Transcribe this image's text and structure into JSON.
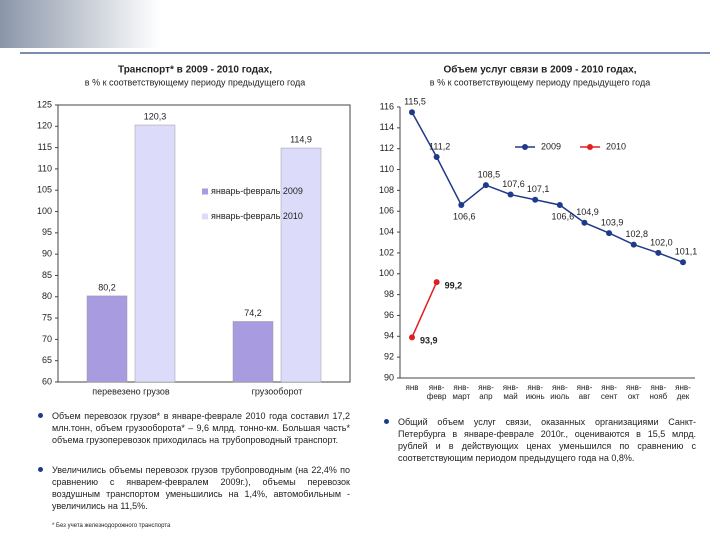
{
  "chart_data": [
    {
      "type": "bar",
      "title": "Транспорт* в 2009 - 2010 годах,",
      "subtitle": "в % к соответствующему периоду предыдущего года",
      "categories": [
        "перевезено грузов",
        "грузооборот"
      ],
      "series": [
        {
          "name": "январь-февраль 2009",
          "color": "#a99be0",
          "values": [
            80.2,
            74.2
          ],
          "value_labels": [
            "80,2",
            "74,2"
          ]
        },
        {
          "name": "январь-февраль 2010",
          "color": "#dcdcfa",
          "values": [
            120.3,
            114.9
          ],
          "value_labels": [
            "120,3",
            "114,9"
          ]
        }
      ],
      "ylim": [
        60,
        125
      ],
      "yticks": [
        60,
        65,
        70,
        75,
        80,
        85,
        90,
        95,
        100,
        105,
        110,
        115,
        120,
        125
      ],
      "grid": false,
      "legend": "center"
    },
    {
      "type": "line",
      "title": "Объем услуг связи в 2009 - 2010 годах,",
      "subtitle": "в % к соответствующему периоду предыдущего года",
      "categories": [
        "янв",
        "янв-февр",
        "янв-март",
        "янв-апр",
        "янв-май",
        "янв-июнь",
        "янв-июль",
        "янв-авг",
        "янв-сент",
        "янв-окт",
        "янв-нояб",
        "янв-дек"
      ],
      "series": [
        {
          "name": "2009",
          "color": "#1f3a8a",
          "values": [
            115.5,
            111.2,
            106.6,
            108.5,
            107.6,
            107.1,
            106.6,
            104.9,
            103.9,
            102.8,
            102.0,
            101.1
          ],
          "value_labels": [
            "115,5",
            "111,2",
            "106,6",
            "108,5",
            "107,6",
            "107,1",
            "106,6",
            "104,9",
            "103,9",
            "102,8",
            "102,0",
            "101,1"
          ]
        },
        {
          "name": "2010",
          "color": "#e02020",
          "values": [
            93.9,
            99.2,
            null,
            null,
            null,
            null,
            null,
            null,
            null,
            null,
            null,
            null
          ],
          "value_labels": [
            "93,9",
            "99,2",
            null,
            null,
            null,
            null,
            null,
            null,
            null,
            null,
            null,
            null
          ]
        }
      ],
      "ylim": [
        90,
        116
      ],
      "yticks": [
        90,
        92,
        94,
        96,
        98,
        100,
        102,
        104,
        106,
        108,
        110,
        112,
        114,
        116
      ],
      "grid": false,
      "legend": "upper right"
    }
  ],
  "notes": {
    "left": [
      "Объем перевозок грузов* в январе-феврале 2010 года составил 17,2 млн.тонн, объем грузооборота* – 9,6 млрд. тонно-км. Большая часть* объема грузоперевозок приходилась на трубопроводный транспорт.",
      "Увеличились объемы перевозок грузов трубопроводным (на 22,4% по сравнению с январем-февралем 2009г.), объемы перевозок воздушным транспортом уменьшились на 1,4%, автомобильным - увеличились на 11,5%."
    ],
    "footnote": "* Без учета железнодорожного транспорта",
    "right": [
      "Общий объем услуг связи, оказанных организациями Санкт-Петербурга в январе-феврале 2010г., оцениваются в 15,5 млрд. рублей и в действующих ценах уменьшился по сравнению с соответствующим периодом предыдущего года на 0,8%."
    ]
  }
}
